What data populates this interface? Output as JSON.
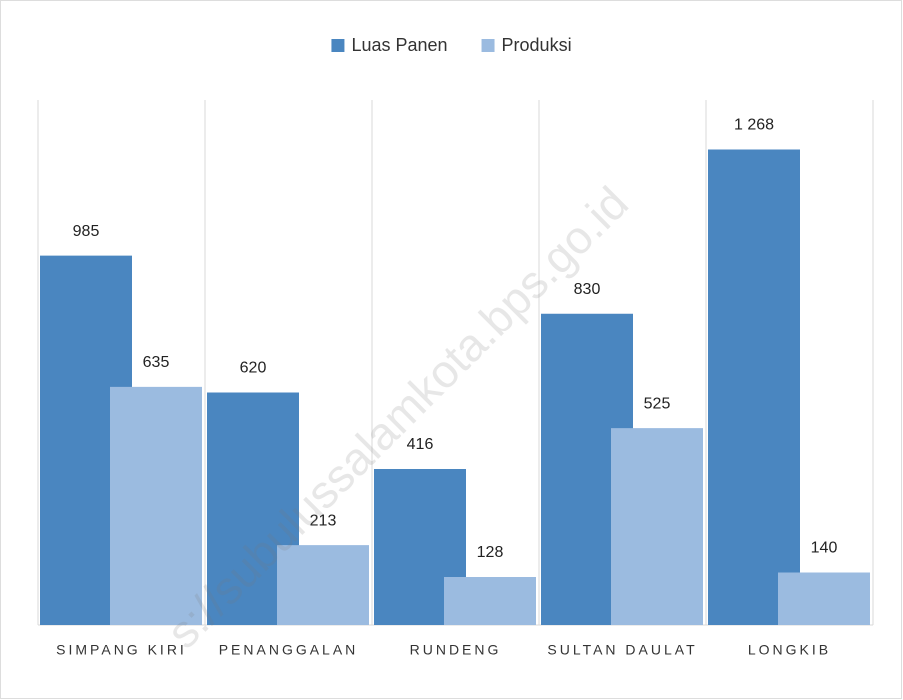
{
  "chart_data": {
    "type": "bar",
    "categories": [
      "SIMPANG KIRI",
      "PENANGGALAN",
      "RUNDENG",
      "SULTAN DAULAT",
      "LONGKIB"
    ],
    "series": [
      {
        "name": "Luas Panen",
        "color": "#4a86c0",
        "values": [
          985,
          620,
          416,
          830,
          1268
        ],
        "value_labels": [
          "985",
          "620",
          "416",
          "830",
          "1 268"
        ]
      },
      {
        "name": "Produksi",
        "color": "#9bbbe0",
        "values": [
          635,
          213,
          128,
          525,
          140
        ]
      }
    ],
    "ylim": [
      0,
      1400
    ],
    "grid": true,
    "legend": "top",
    "watermark": "s://subulussalamkota.bps.go.id"
  }
}
